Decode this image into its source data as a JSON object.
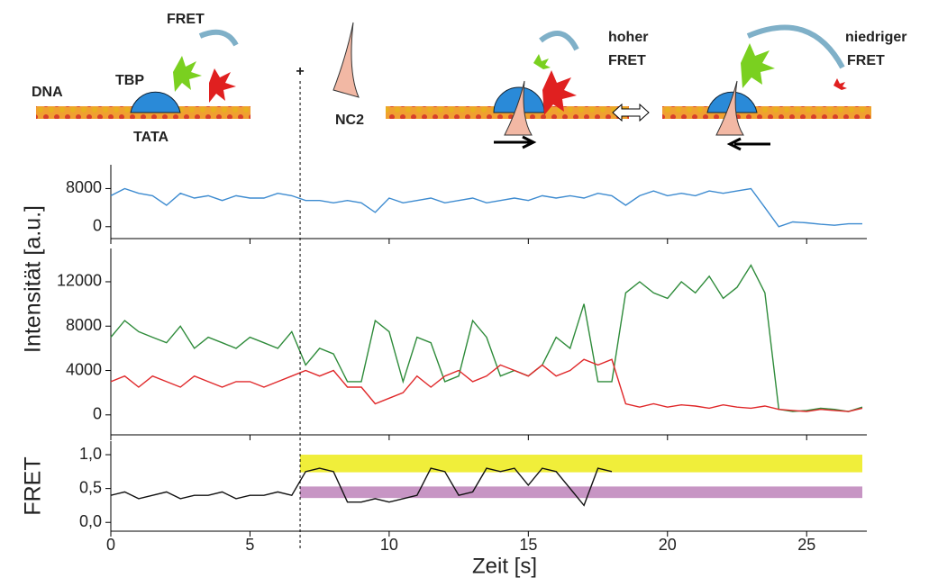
{
  "diagram": {
    "labels": [
      "FRET",
      "TBP",
      "DNA",
      "TATA",
      "+",
      "NC2",
      "hoher",
      "FRET",
      "niedriger",
      "FRET"
    ]
  },
  "chart_data": [
    {
      "type": "line",
      "xlim": [
        0,
        27
      ],
      "ylim": [
        -2500,
        13000
      ],
      "yticks": [
        0,
        8000
      ],
      "x": [
        0,
        0.5,
        1,
        1.5,
        2,
        2.5,
        3,
        3.5,
        4,
        4.5,
        5,
        5.5,
        6,
        6.5,
        7,
        7.5,
        8,
        8.5,
        9,
        9.5,
        10,
        10.5,
        11,
        11.5,
        12,
        12.5,
        13,
        13.5,
        14,
        14.5,
        15,
        15.5,
        16,
        16.5,
        17,
        17.5,
        18,
        18.5,
        19,
        19.5,
        20,
        20.5,
        21,
        21.5,
        22,
        22.5,
        23,
        23.5,
        24,
        24.5,
        25,
        25.5,
        26,
        26.5,
        27
      ],
      "series": [
        {
          "color": "#3d8bd0",
          "values": [
            6500,
            8000,
            7000,
            6500,
            4500,
            7000,
            6000,
            6500,
            5500,
            6500,
            6000,
            6000,
            7000,
            6500,
            5500,
            5500,
            5000,
            5500,
            5000,
            3000,
            6000,
            5000,
            5500,
            6000,
            5000,
            5500,
            6000,
            5000,
            5500,
            6000,
            5500,
            6500,
            6000,
            6500,
            6000,
            7000,
            6500,
            4500,
            6500,
            7500,
            6500,
            7000,
            6500,
            7500,
            7000,
            7500,
            8000,
            4000,
            0,
            1000,
            800,
            500,
            300,
            600,
            600
          ]
        }
      ]
    },
    {
      "type": "line",
      "xlim": [
        0,
        27
      ],
      "ylim": [
        -1800,
        15000
      ],
      "yticks": [
        0,
        4000,
        8000,
        12000
      ],
      "ylabel": "Intensität [a.u.]",
      "x": [
        0,
        0.5,
        1,
        1.5,
        2,
        2.5,
        3,
        3.5,
        4,
        4.5,
        5,
        5.5,
        6,
        6.5,
        7,
        7.5,
        8,
        8.5,
        9,
        9.5,
        10,
        10.5,
        11,
        11.5,
        12,
        12.5,
        13,
        13.5,
        14,
        14.5,
        15,
        15.5,
        16,
        16.5,
        17,
        17.5,
        18,
        18.5,
        19,
        19.5,
        20,
        20.5,
        21,
        21.5,
        22,
        22.5,
        23,
        23.5,
        24,
        24.5,
        25,
        25.5,
        26,
        26.5,
        27
      ],
      "series": [
        {
          "color": "#2e8b3a",
          "values": [
            7000,
            8500,
            7500,
            7000,
            6500,
            8000,
            6000,
            7000,
            6500,
            6000,
            7000,
            6500,
            6000,
            7500,
            4500,
            6000,
            5500,
            3000,
            3000,
            8500,
            7500,
            3000,
            7000,
            6500,
            3000,
            3500,
            8500,
            7000,
            3500,
            4000,
            3500,
            4500,
            7000,
            6000,
            10000,
            3000,
            3000,
            11000,
            12000,
            11000,
            10500,
            12000,
            11000,
            12500,
            10500,
            11500,
            13500,
            11000,
            500,
            300,
            400,
            600,
            500,
            300,
            700
          ]
        },
        {
          "color": "#e0282a",
          "values": [
            3000,
            3500,
            2500,
            3500,
            3000,
            2500,
            3500,
            3000,
            2500,
            3000,
            3000,
            2500,
            3000,
            3500,
            4000,
            3500,
            4000,
            2500,
            2500,
            1000,
            1500,
            2000,
            3500,
            2500,
            3500,
            4000,
            3000,
            3500,
            4500,
            4000,
            3500,
            4500,
            3500,
            4000,
            5000,
            4500,
            5000,
            1000,
            700,
            1000,
            700,
            900,
            800,
            600,
            900,
            700,
            600,
            800,
            500,
            400,
            300,
            500,
            400,
            300,
            600
          ]
        }
      ]
    },
    {
      "type": "line",
      "xlim": [
        0,
        27
      ],
      "ylim": [
        -0.13,
        1.2
      ],
      "yticks": [
        {
          "value": 0,
          "label": "0,0"
        },
        {
          "value": 0.5,
          "label": "0,5"
        },
        {
          "value": 1,
          "label": "1,0"
        }
      ],
      "ylabel": "FRET",
      "xlabel": "Zeit [s]",
      "xticks": [
        0,
        5,
        10,
        15,
        20,
        25
      ],
      "vline": 6.8,
      "bands": [
        {
          "x0": 6.8,
          "x1": 27,
          "y0": 0.74,
          "y1": 1.0,
          "color": "#f0ee3a"
        },
        {
          "x0": 6.8,
          "x1": 27,
          "y0": 0.36,
          "y1": 0.53,
          "color": "#c795c4"
        }
      ],
      "x": [
        0,
        0.5,
        1,
        1.5,
        2,
        2.5,
        3,
        3.5,
        4,
        4.5,
        5,
        5.5,
        6,
        6.5,
        7,
        7.5,
        8,
        8.5,
        9,
        9.5,
        10,
        10.5,
        11,
        11.5,
        12,
        12.5,
        13,
        13.5,
        14,
        14.5,
        15,
        15.5,
        16,
        16.5,
        17,
        17.5,
        18,
        18.5,
        19,
        19.5,
        20,
        20.5,
        21,
        21.5,
        22,
        22.5,
        23,
        23.5,
        24,
        24.5,
        25,
        25.5,
        26,
        26.5,
        27
      ],
      "series": [
        {
          "color": "#111111",
          "values": [
            0.4,
            0.45,
            0.35,
            0.4,
            0.45,
            0.35,
            0.4,
            0.4,
            0.45,
            0.35,
            0.4,
            0.4,
            0.45,
            0.4,
            0.75,
            0.8,
            0.75,
            0.3,
            0.3,
            0.35,
            0.3,
            0.35,
            0.4,
            0.8,
            0.75,
            0.4,
            0.45,
            0.8,
            0.75,
            0.8,
            0.55,
            0.8,
            0.75,
            0.5,
            0.25,
            0.8,
            0.75,
            null,
            null,
            null,
            null,
            null,
            null,
            null,
            null,
            null,
            null,
            null,
            null,
            null,
            null,
            null,
            null,
            null,
            null
          ]
        }
      ]
    }
  ]
}
